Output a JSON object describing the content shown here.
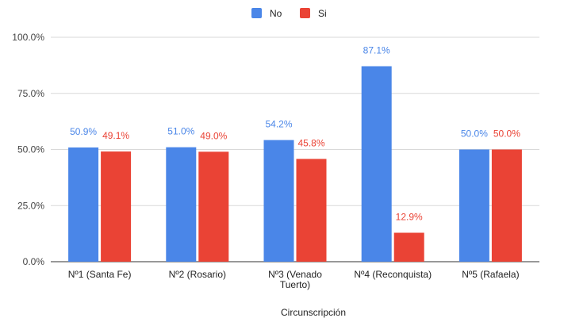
{
  "chart_data": {
    "type": "bar",
    "title": "",
    "xlabel": "Circunscripción",
    "ylabel": "",
    "ylim": [
      0,
      100
    ],
    "y_ticks": [
      "0.0%",
      "25.0%",
      "50.0%",
      "75.0%",
      "100.0%"
    ],
    "y_tick_values": [
      0,
      25,
      50,
      75,
      100
    ],
    "categories": [
      [
        "Nº1 (Santa Fe)"
      ],
      [
        "Nº2 (Rosario)"
      ],
      [
        "Nº3 (Venado",
        "Tuerto)"
      ],
      [
        "Nº4 (Reconquista)"
      ],
      [
        "Nº5 (Rafaela)"
      ]
    ],
    "series": [
      {
        "name": "No",
        "color": "#4a86e8",
        "label_color": "#4a86e8",
        "values": [
          50.9,
          51.0,
          54.2,
          87.1,
          50.0
        ],
        "labels": [
          "50.9%",
          "51.0%",
          "54.2%",
          "87.1%",
          "50.0%"
        ]
      },
      {
        "name": "Si",
        "color": "#ea4335",
        "label_color": "#ea4335",
        "values": [
          49.1,
          49.0,
          45.8,
          12.9,
          50.0
        ],
        "labels": [
          "49.1%",
          "49.0%",
          "45.8%",
          "12.9%",
          "50.0%"
        ]
      }
    ],
    "legend_position": "top",
    "grid": true
  }
}
